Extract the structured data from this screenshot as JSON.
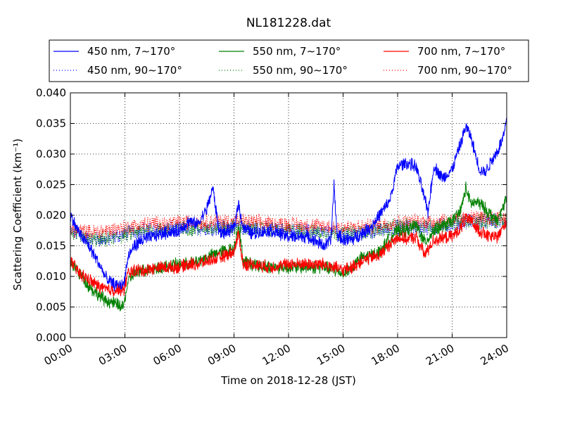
{
  "chart_data": {
    "type": "line",
    "title": "NL181228.dat",
    "xlabel": "Time on 2018-12-28 (JST)",
    "ylabel": "Scattering Coefficient (km⁻¹)",
    "xlim": [
      "00:00",
      "24:00"
    ],
    "ylim": [
      0,
      0.04
    ],
    "x_ticks": [
      "00:00",
      "03:00",
      "06:00",
      "09:00",
      "12:00",
      "15:00",
      "18:00",
      "21:00",
      "24:00"
    ],
    "y_ticks": [
      "0.000",
      "0.005",
      "0.010",
      "0.015",
      "0.020",
      "0.025",
      "0.030",
      "0.035",
      "0.040"
    ],
    "grid": true,
    "legend_position": "top",
    "series": [
      {
        "name": "450 nm, 7∼170°",
        "color": "#0000ff",
        "style": "solid",
        "x": [
          "00:00",
          "00:30",
          "01:00",
          "01:30",
          "02:00",
          "02:30",
          "02:55",
          "03:10",
          "03:30",
          "04:00",
          "05:00",
          "06:00",
          "06:30",
          "07:00",
          "07:30",
          "07:50",
          "08:10",
          "08:30",
          "09:00",
          "09:15",
          "09:30",
          "10:00",
          "11:00",
          "12:00",
          "13:00",
          "14:00",
          "14:20",
          "14:30",
          "14:40",
          "15:00",
          "15:30",
          "16:00",
          "16:30",
          "17:00",
          "17:30",
          "17:40",
          "18:00",
          "18:30",
          "19:00",
          "19:20",
          "19:40",
          "20:00",
          "20:30",
          "21:00",
          "21:30",
          "21:45",
          "22:00",
          "22:30",
          "22:50",
          "23:10",
          "23:30",
          "23:50",
          "24:00"
        ],
        "y": [
          0.02,
          0.017,
          0.015,
          0.0125,
          0.0095,
          0.0085,
          0.0085,
          0.013,
          0.015,
          0.016,
          0.017,
          0.0175,
          0.019,
          0.0185,
          0.021,
          0.0245,
          0.0175,
          0.017,
          0.018,
          0.022,
          0.018,
          0.017,
          0.0175,
          0.0165,
          0.0165,
          0.015,
          0.016,
          0.025,
          0.017,
          0.016,
          0.016,
          0.017,
          0.018,
          0.02,
          0.022,
          0.0235,
          0.028,
          0.0285,
          0.028,
          0.0245,
          0.0205,
          0.028,
          0.026,
          0.0275,
          0.032,
          0.0345,
          0.033,
          0.0275,
          0.027,
          0.029,
          0.0305,
          0.033,
          0.0355
        ]
      },
      {
        "name": "450 nm, 90∼170°",
        "color": "#0000ff",
        "style": "dotted",
        "x": [
          "00:00",
          "01:00",
          "02:00",
          "03:00",
          "04:00",
          "06:00",
          "09:00",
          "12:00",
          "15:00",
          "16:00",
          "18:00",
          "20:00",
          "22:00",
          "24:00"
        ],
        "y": [
          0.0175,
          0.016,
          0.016,
          0.017,
          0.0175,
          0.0178,
          0.018,
          0.0175,
          0.017,
          0.017,
          0.018,
          0.018,
          0.019,
          0.019
        ]
      },
      {
        "name": "550 nm, 7∼170°",
        "color": "#008000",
        "style": "solid",
        "x": [
          "00:00",
          "00:30",
          "01:00",
          "01:30",
          "02:00",
          "02:30",
          "02:55",
          "03:10",
          "03:30",
          "04:00",
          "05:00",
          "06:00",
          "06:30",
          "07:00",
          "07:30",
          "08:10",
          "09:00",
          "09:15",
          "09:30",
          "10:00",
          "11:00",
          "12:00",
          "13:00",
          "14:00",
          "15:00",
          "15:30",
          "16:00",
          "17:00",
          "17:30",
          "18:00",
          "18:30",
          "19:00",
          "19:30",
          "20:00",
          "21:00",
          "21:30",
          "21:45",
          "22:00",
          "22:30",
          "23:00",
          "23:30",
          "24:00"
        ],
        "y": [
          0.0125,
          0.0105,
          0.0085,
          0.007,
          0.006,
          0.0055,
          0.005,
          0.009,
          0.0105,
          0.011,
          0.0115,
          0.012,
          0.012,
          0.0125,
          0.013,
          0.014,
          0.0145,
          0.0185,
          0.0125,
          0.012,
          0.0115,
          0.0115,
          0.0115,
          0.0115,
          0.0105,
          0.0115,
          0.013,
          0.014,
          0.016,
          0.0175,
          0.0175,
          0.0185,
          0.0155,
          0.0175,
          0.019,
          0.021,
          0.0245,
          0.022,
          0.022,
          0.0205,
          0.019,
          0.023
        ]
      },
      {
        "name": "550 nm, 90∼170°",
        "color": "#008000",
        "style": "dotted",
        "x": [
          "00:00",
          "01:00",
          "02:00",
          "03:00",
          "04:00",
          "06:00",
          "09:00",
          "12:00",
          "15:00",
          "16:00",
          "18:00",
          "20:00",
          "22:00",
          "24:00"
        ],
        "y": [
          0.0172,
          0.016,
          0.016,
          0.0168,
          0.0175,
          0.0178,
          0.018,
          0.0175,
          0.017,
          0.0172,
          0.0182,
          0.0182,
          0.019,
          0.019
        ]
      },
      {
        "name": "700 nm, 7∼170°",
        "color": "#ff0000",
        "style": "solid",
        "x": [
          "00:00",
          "00:30",
          "01:00",
          "01:30",
          "02:00",
          "02:30",
          "02:55",
          "03:10",
          "03:30",
          "04:00",
          "05:00",
          "06:00",
          "06:30",
          "07:00",
          "07:30",
          "08:10",
          "09:00",
          "09:15",
          "09:30",
          "10:00",
          "11:00",
          "12:00",
          "13:00",
          "14:00",
          "15:00",
          "15:30",
          "16:00",
          "17:00",
          "17:30",
          "18:00",
          "18:30",
          "19:00",
          "19:30",
          "20:00",
          "21:00",
          "21:30",
          "21:45",
          "22:00",
          "22:30",
          "23:00",
          "23:30",
          "24:00"
        ],
        "y": [
          0.0125,
          0.0105,
          0.0095,
          0.0085,
          0.0078,
          0.0078,
          0.0075,
          0.0105,
          0.011,
          0.011,
          0.0115,
          0.0115,
          0.012,
          0.012,
          0.0125,
          0.013,
          0.014,
          0.017,
          0.012,
          0.012,
          0.0115,
          0.012,
          0.012,
          0.012,
          0.011,
          0.0115,
          0.0125,
          0.0135,
          0.015,
          0.0165,
          0.016,
          0.0165,
          0.0135,
          0.016,
          0.0165,
          0.018,
          0.0195,
          0.019,
          0.0175,
          0.0165,
          0.0165,
          0.019
        ]
      },
      {
        "name": "700 nm, 90∼170°",
        "color": "#ff0000",
        "style": "dotted",
        "x": [
          "00:00",
          "01:00",
          "02:00",
          "03:00",
          "04:00",
          "06:00",
          "09:00",
          "12:00",
          "15:00",
          "16:00",
          "18:00",
          "20:00",
          "22:00",
          "24:00"
        ],
        "y": [
          0.0178,
          0.0172,
          0.0175,
          0.018,
          0.0185,
          0.0188,
          0.019,
          0.0185,
          0.018,
          0.018,
          0.0188,
          0.019,
          0.0195,
          0.0195
        ]
      }
    ]
  }
}
